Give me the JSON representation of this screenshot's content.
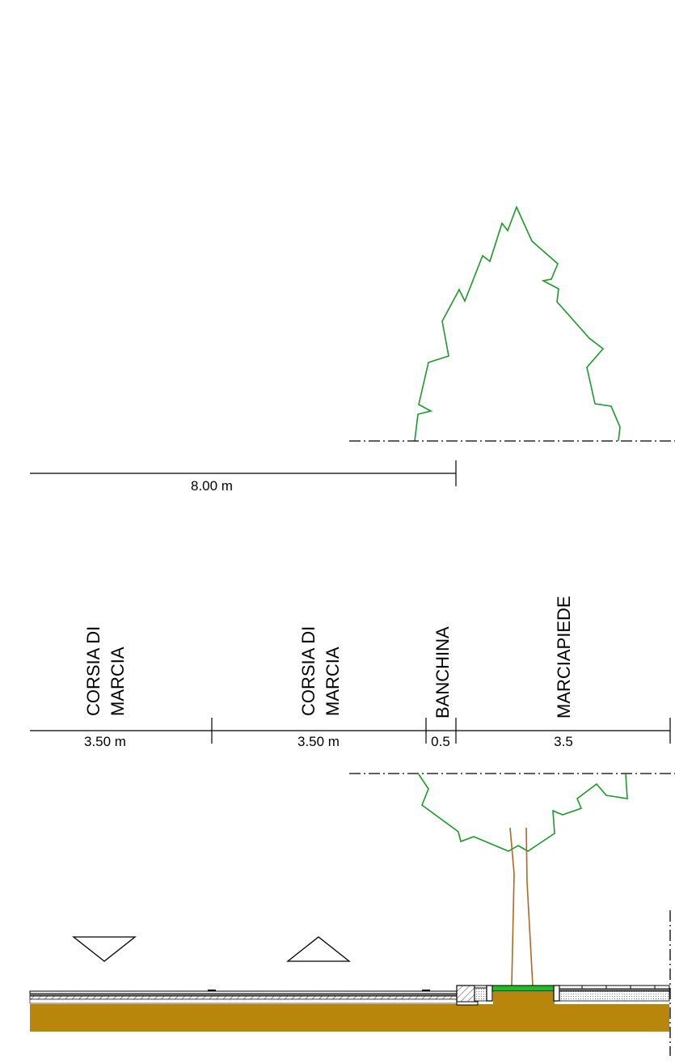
{
  "colors": {
    "foliage": "#1a9a2a",
    "trunk": "#b5651d",
    "ground": "#b8860b",
    "planter_grass": "#22bb22",
    "line": "#000000"
  },
  "upper_view": {
    "dimension": {
      "label": "8.00 m"
    }
  },
  "section": {
    "lane_labels": [
      {
        "line1": "CORSIA DI",
        "line2": "MARCIA"
      },
      {
        "line1": "CORSIA DI",
        "line2": "MARCIA"
      },
      {
        "line1": "BANCHINA",
        "line2": ""
      },
      {
        "line1": "MARCIAPIEDE",
        "line2": ""
      }
    ],
    "dimensions": [
      {
        "label": "3.50 m"
      },
      {
        "label": "3.50 m"
      },
      {
        "label": "0.5"
      },
      {
        "label": "3.5"
      }
    ]
  }
}
